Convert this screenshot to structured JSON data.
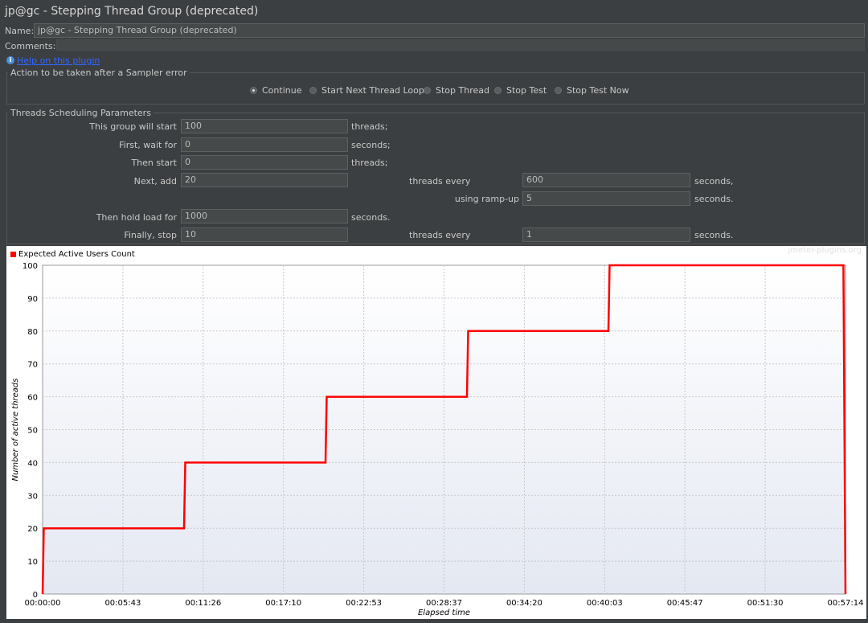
{
  "window": {
    "title": "jp@gc - Stepping Thread Group (deprecated)"
  },
  "name": {
    "label": "Name:",
    "value": "jp@gc - Stepping Thread Group (deprecated)"
  },
  "comments": {
    "label": "Comments:"
  },
  "help": {
    "icon": "info-icon",
    "link_text": "Help on this plugin"
  },
  "sampler_error": {
    "legend": "Action to be taken after a Sampler error",
    "options": [
      "Continue",
      "Start Next Thread Loop",
      "Stop Thread",
      "Stop Test",
      "Stop Test Now"
    ],
    "selected": "Continue"
  },
  "scheduling": {
    "legend": "Threads Scheduling Parameters",
    "group_start_label": "This group will start",
    "group_start_value": "100",
    "group_start_unit": "threads;",
    "first_wait_label": "First, wait for",
    "first_wait_value": "0",
    "first_wait_unit": "seconds;",
    "then_start_label": "Then start",
    "then_start_value": "0",
    "then_start_unit": "threads;",
    "next_add_label": "Next, add",
    "next_add_value": "20",
    "next_add_mid": "threads every",
    "next_add_every_value": "600",
    "next_add_unit": "seconds,",
    "ramp_up_label": "using ramp-up",
    "ramp_up_value": "5",
    "ramp_up_unit": "seconds.",
    "hold_label": "Then hold load for",
    "hold_value": "1000",
    "hold_unit": "seconds.",
    "stop_label": "Finally, stop",
    "stop_value": "10",
    "stop_mid": "threads every",
    "stop_every_value": "1",
    "stop_unit": "seconds."
  },
  "chart_watermark": "jmeter-plugins.org",
  "chart_data": {
    "type": "line",
    "title": "",
    "legend": [
      "Expected Active Users Count"
    ],
    "xlabel": "Elapsed time",
    "ylabel": "Number of active threads",
    "color": "#ff0000",
    "xlim": [
      0,
      3434
    ],
    "ylim": [
      0,
      100
    ],
    "x_ticks": [
      "00:00:00",
      "00:05:43",
      "00:11:26",
      "00:17:10",
      "00:22:53",
      "00:28:37",
      "00:34:20",
      "00:40:03",
      "00:45:47",
      "00:51:30",
      "00:57:14"
    ],
    "y_ticks": [
      "0",
      "10",
      "20",
      "30",
      "40",
      "50",
      "60",
      "70",
      "80",
      "90",
      "100"
    ],
    "grid": true,
    "series": [
      {
        "name": "Expected Active Users Count",
        "x_seconds": [
          0,
          5,
          605,
          610,
          1210,
          1215,
          1815,
          1820,
          2420,
          2425,
          3425,
          3434
        ],
        "y": [
          0,
          20,
          20,
          40,
          40,
          60,
          60,
          80,
          80,
          100,
          100,
          0
        ]
      }
    ]
  }
}
